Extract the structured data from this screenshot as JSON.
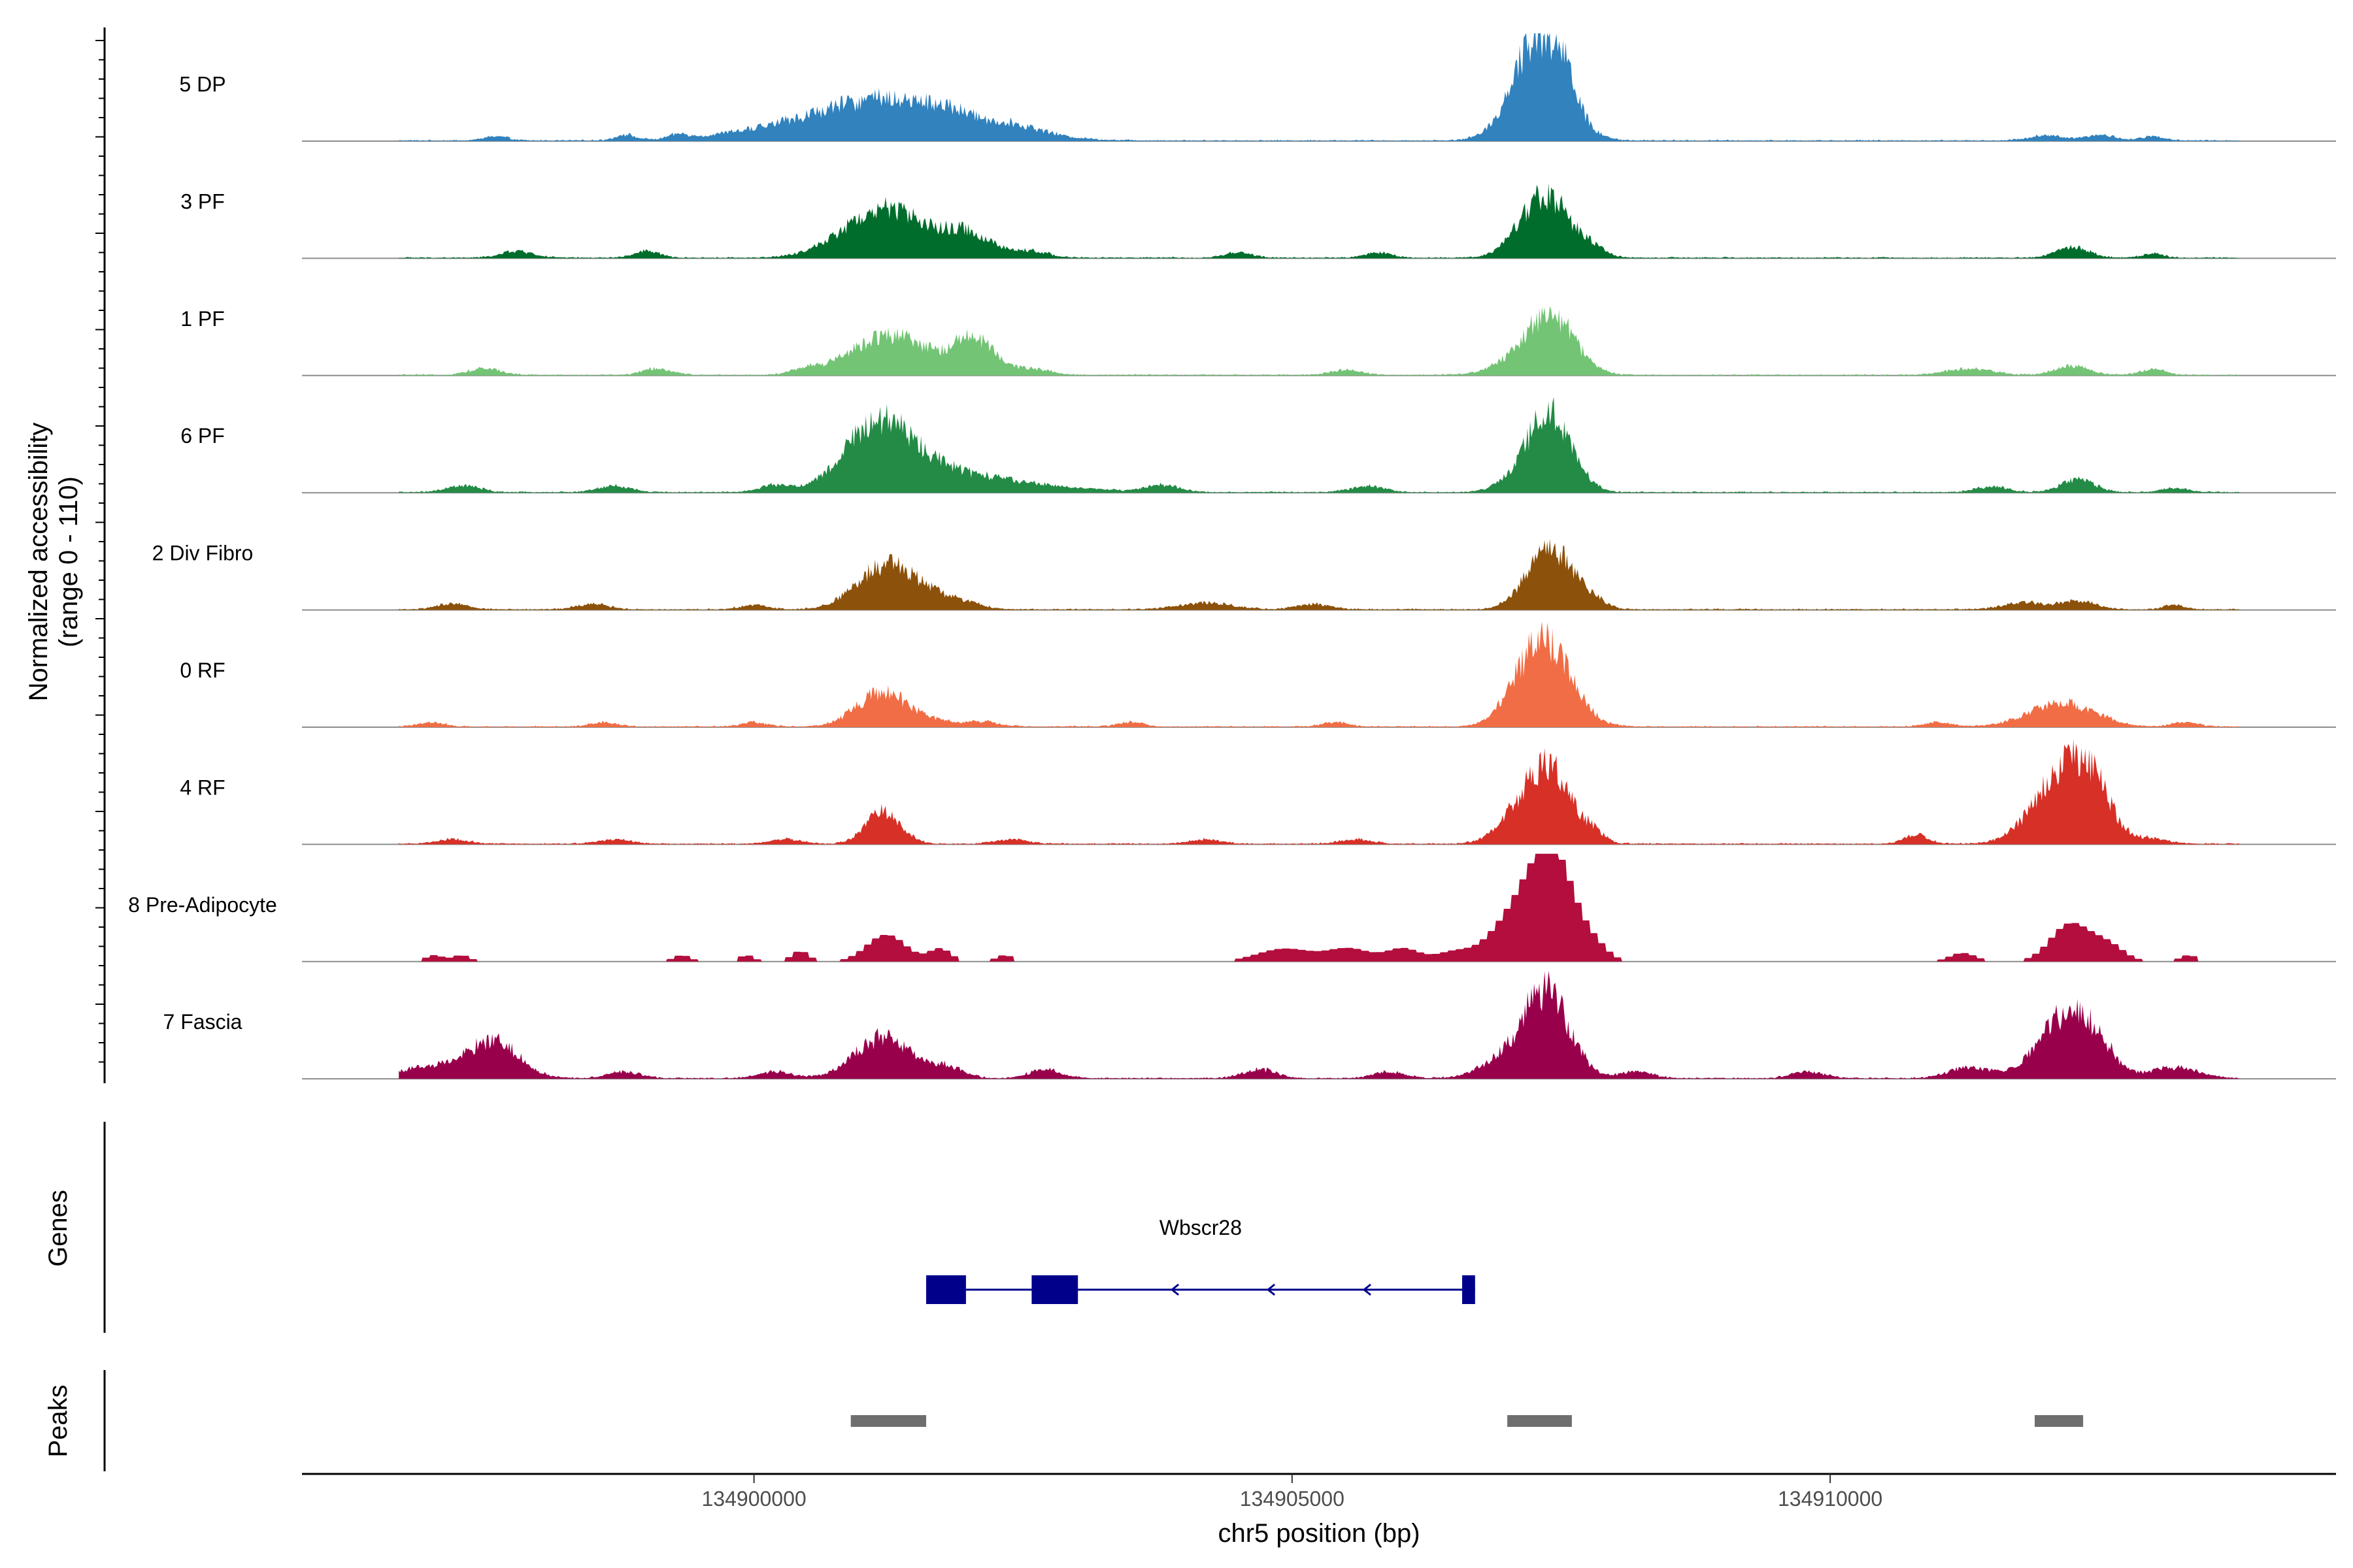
{
  "chart_data": {
    "type": "area",
    "title": "",
    "ylabel_line1": "Normalized accessibility",
    "ylabel_line2": "(range 0 - 110)",
    "ylim": [
      0,
      110
    ],
    "xlabel": "chr5 position (bp)",
    "xlim": [
      134895800,
      134914700
    ],
    "xticks": [
      134900000,
      134905000,
      134910000
    ],
    "xtick_labels": [
      "134900000",
      "134905000",
      "134910000"
    ],
    "data_extent": [
      134896700,
      134913800
    ],
    "series": [
      {
        "name": "5 DP",
        "color": "#3182bd",
        "peaks": [
          [
            134897600,
            110,
            4,
            "b"
          ],
          [
            134898800,
            90,
            5,
            "b"
          ],
          [
            134899300,
            80,
            4,
            "b"
          ],
          [
            134901100,
            800,
            30,
            "p"
          ],
          [
            134901300,
            400,
            10,
            "p"
          ],
          [
            134901800,
            180,
            6,
            "b"
          ],
          [
            134902400,
            300,
            8,
            "p"
          ],
          [
            134907300,
            250,
            80,
            "p"
          ],
          [
            134907500,
            120,
            25,
            "p"
          ],
          [
            134907200,
            140,
            15,
            "p"
          ],
          [
            134912000,
            150,
            5,
            "b"
          ],
          [
            134912500,
            150,
            5,
            "b"
          ],
          [
            134913000,
            100,
            4,
            "b"
          ]
        ]
      },
      {
        "name": "3 PF",
        "color": "#006d2c",
        "peaks": [
          [
            134897800,
            150,
            6,
            "b"
          ],
          [
            134899000,
            120,
            6,
            "b"
          ],
          [
            134901150,
            350,
            38,
            "p"
          ],
          [
            134901600,
            450,
            12,
            "p"
          ],
          [
            134902000,
            220,
            15,
            "p"
          ],
          [
            134902600,
            150,
            5,
            "b"
          ],
          [
            134904500,
            120,
            5,
            "b"
          ],
          [
            134905800,
            120,
            5,
            "b"
          ],
          [
            134907350,
            230,
            58,
            "p"
          ],
          [
            134907800,
            120,
            6,
            "b"
          ],
          [
            134912250,
            150,
            10,
            "p"
          ],
          [
            134913000,
            100,
            4,
            "b"
          ]
        ]
      },
      {
        "name": "1 PF",
        "color": "#74c476",
        "peaks": [
          [
            134897500,
            150,
            6,
            "b"
          ],
          [
            134899100,
            130,
            6,
            "b"
          ],
          [
            134900500,
            150,
            5,
            "b"
          ],
          [
            134901200,
            320,
            32,
            "p"
          ],
          [
            134901700,
            400,
            10,
            "p"
          ],
          [
            134902050,
            180,
            28,
            "p"
          ],
          [
            134902600,
            160,
            5,
            "b"
          ],
          [
            134905500,
            140,
            5,
            "b"
          ],
          [
            134907400,
            220,
            56,
            "p"
          ],
          [
            134907000,
            200,
            8,
            "p"
          ],
          [
            134911300,
            200,
            6,
            "b"
          ],
          [
            134912250,
            160,
            8,
            "p"
          ],
          [
            134913000,
            120,
            5,
            "b"
          ]
        ]
      },
      {
        "name": "6 PF",
        "color": "#238b45",
        "peaks": [
          [
            134897300,
            150,
            6,
            "b"
          ],
          [
            134898700,
            150,
            6,
            "b"
          ],
          [
            134900200,
            150,
            6,
            "b"
          ],
          [
            134901150,
            300,
            52,
            "p"
          ],
          [
            134901500,
            450,
            15,
            "p"
          ],
          [
            134902100,
            700,
            10,
            "p"
          ],
          [
            134903800,
            150,
            6,
            "b"
          ],
          [
            134905700,
            150,
            6,
            "b"
          ],
          [
            134907400,
            200,
            70,
            "p"
          ],
          [
            134907100,
            180,
            10,
            "p"
          ],
          [
            134911500,
            150,
            5,
            "b"
          ],
          [
            134912300,
            150,
            12,
            "p"
          ],
          [
            134913200,
            120,
            4,
            "b"
          ]
        ]
      },
      {
        "name": "2 Div Fibro",
        "color": "#8c510a",
        "peaks": [
          [
            134897200,
            150,
            5,
            "b"
          ],
          [
            134898500,
            150,
            5,
            "b"
          ],
          [
            134900000,
            130,
            4,
            "b"
          ],
          [
            134901200,
            260,
            35,
            "p"
          ],
          [
            134901500,
            300,
            12,
            "p"
          ],
          [
            134901900,
            180,
            5,
            "b"
          ],
          [
            134904200,
            250,
            6,
            "b"
          ],
          [
            134905200,
            150,
            5,
            "b"
          ],
          [
            134907400,
            210,
            58,
            "p"
          ],
          [
            134907800,
            120,
            6,
            "b"
          ],
          [
            134911800,
            200,
            6,
            "b"
          ],
          [
            134912300,
            160,
            8,
            "p"
          ],
          [
            134913200,
            100,
            4,
            "b"
          ]
        ]
      },
      {
        "name": "0 RF",
        "color": "#f16d45",
        "peaks": [
          [
            134897000,
            120,
            4,
            "b"
          ],
          [
            134898600,
            120,
            4,
            "b"
          ],
          [
            134900000,
            120,
            4,
            "b"
          ],
          [
            134901200,
            240,
            32,
            "p"
          ],
          [
            134901700,
            140,
            4,
            "p"
          ],
          [
            134902100,
            150,
            5,
            "p"
          ],
          [
            134903500,
            120,
            4,
            "b"
          ],
          [
            134905400,
            120,
            4,
            "b"
          ],
          [
            134907350,
            240,
            80,
            "p"
          ],
          [
            134907050,
            160,
            6,
            "p"
          ],
          [
            134911000,
            120,
            4,
            "b"
          ],
          [
            134912150,
            300,
            22,
            "p"
          ],
          [
            134913300,
            120,
            4,
            "b"
          ]
        ]
      },
      {
        "name": "4 RF",
        "color": "#d73027",
        "peaks": [
          [
            134897200,
            150,
            4,
            "b"
          ],
          [
            134898700,
            150,
            4,
            "b"
          ],
          [
            134900300,
            150,
            4,
            "b"
          ],
          [
            134901200,
            160,
            30,
            "p"
          ],
          [
            134902400,
            150,
            4,
            "b"
          ],
          [
            134904200,
            150,
            4,
            "b"
          ],
          [
            134905600,
            150,
            4,
            "b"
          ],
          [
            134907350,
            220,
            74,
            "p"
          ],
          [
            134906950,
            150,
            8,
            "p"
          ],
          [
            134907800,
            100,
            8,
            "p"
          ],
          [
            134910800,
            110,
            8,
            "p"
          ],
          [
            134912200,
            280,
            70,
            "p"
          ],
          [
            134912450,
            150,
            22,
            "p"
          ],
          [
            134913000,
            150,
            4,
            "b"
          ]
        ]
      },
      {
        "name": "8 Pre-Adipocyte",
        "color": "#b30e3d",
        "peaks": [
          [
            134897000,
            80,
            6,
            "s"
          ],
          [
            134897250,
            80,
            6,
            "s"
          ],
          [
            134899300,
            80,
            6,
            "s"
          ],
          [
            134899900,
            70,
            6,
            "s"
          ],
          [
            134900400,
            80,
            10,
            "s"
          ],
          [
            134901200,
            180,
            25,
            "s"
          ],
          [
            134901700,
            100,
            12,
            "s"
          ],
          [
            134902300,
            80,
            6,
            "s"
          ],
          [
            134904900,
            250,
            12,
            "s"
          ],
          [
            134905500,
            200,
            12,
            "s"
          ],
          [
            134906000,
            150,
            12,
            "s"
          ],
          [
            134906500,
            180,
            10,
            "s"
          ],
          [
            134906850,
            150,
            10,
            "s"
          ],
          [
            134907400,
            200,
            95,
            "s"
          ],
          [
            134907100,
            200,
            40,
            "s"
          ],
          [
            134907800,
            120,
            10,
            "s"
          ],
          [
            134911200,
            120,
            8,
            "s"
          ],
          [
            134912200,
            180,
            35,
            "s"
          ],
          [
            134912550,
            150,
            15,
            "s"
          ],
          [
            134913300,
            80,
            6,
            "s"
          ]
        ]
      },
      {
        "name": "7 Fascia",
        "color": "#99004c",
        "peaks": [
          [
            134897100,
            400,
            12,
            "b"
          ],
          [
            134897600,
            220,
            30,
            "p"
          ],
          [
            134898800,
            150,
            6,
            "b"
          ],
          [
            134900200,
            150,
            6,
            "b"
          ],
          [
            134901200,
            260,
            38,
            "p"
          ],
          [
            134901800,
            150,
            10,
            "p"
          ],
          [
            134902700,
            150,
            8,
            "b"
          ],
          [
            134904700,
            150,
            8,
            "b"
          ],
          [
            134905900,
            150,
            6,
            "b"
          ],
          [
            134907350,
            220,
            80,
            "p"
          ],
          [
            134906900,
            200,
            12,
            "p"
          ],
          [
            134908200,
            150,
            6,
            "b"
          ],
          [
            134909800,
            150,
            6,
            "b"
          ],
          [
            134911300,
            200,
            10,
            "p"
          ],
          [
            134912200,
            250,
            60,
            "p"
          ],
          [
            134912500,
            150,
            15,
            "p"
          ],
          [
            134913200,
            220,
            10,
            "p"
          ]
        ]
      }
    ],
    "gene": {
      "name": "Wbscr28",
      "strand": "-",
      "start": 134901600,
      "end": 134906700,
      "exons": [
        [
          134901600,
          134901970
        ],
        [
          134902580,
          134903010
        ],
        [
          134906580,
          134906700
        ]
      ],
      "color": "#00008b"
    },
    "peaks_track": {
      "label": "Peaks",
      "color": "#6e6e6e",
      "regions": [
        [
          134900900,
          134901600
        ],
        [
          134907000,
          134907600
        ],
        [
          134911900,
          134912350
        ]
      ]
    },
    "genes_track_label": "Genes"
  }
}
